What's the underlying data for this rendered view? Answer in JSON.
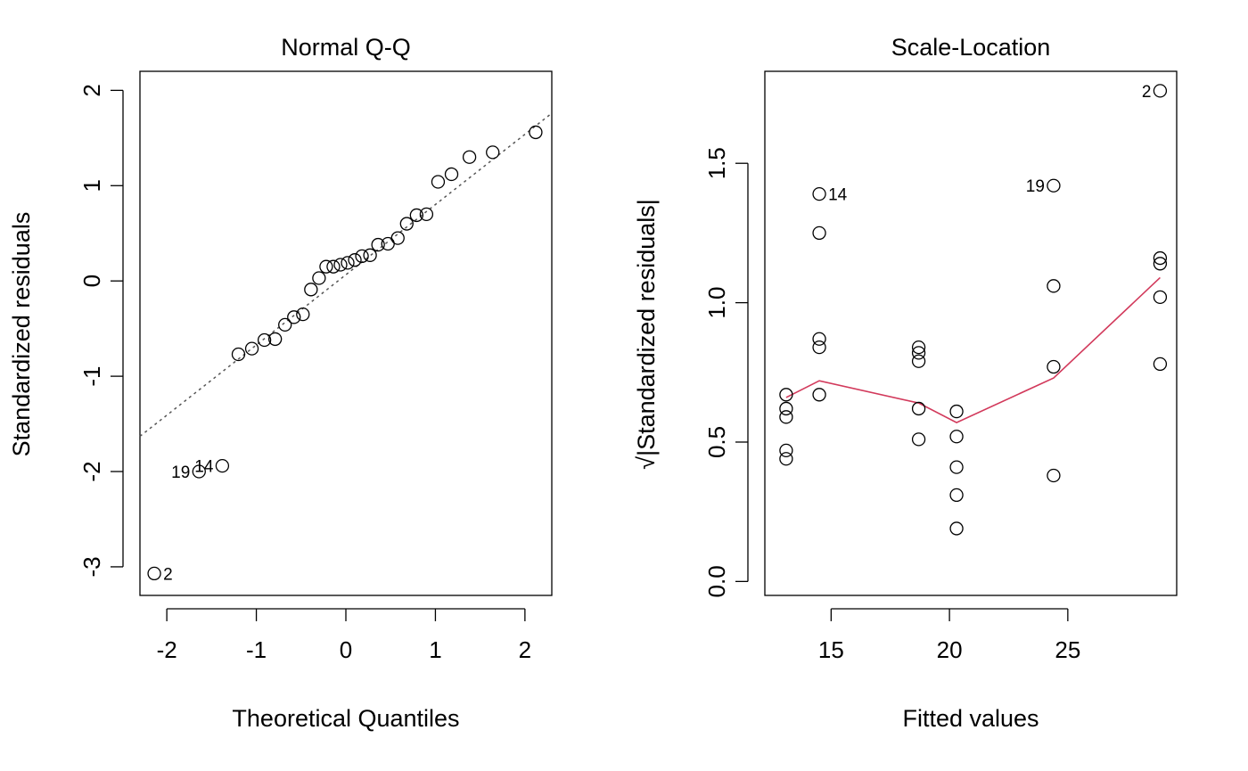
{
  "figure": {
    "chart_data": [
      {
        "type": "scatter",
        "title": "Normal Q-Q",
        "xlabel": "Theoretical Quantiles",
        "ylabel": "Standardized residuals",
        "xlim": [
          -2.3,
          2.3
        ],
        "ylim": [
          -3.3,
          2.2
        ],
        "xticks": [
          "-2",
          "-1",
          "0",
          "1",
          "2"
        ],
        "xtick_values": [
          -2,
          -1,
          0,
          1,
          2
        ],
        "yticks": [
          "-3",
          "-2",
          "-1",
          "0",
          "1",
          "2"
        ],
        "ytick_values": [
          -3,
          -2,
          -1,
          0,
          1,
          2
        ],
        "reference_line": {
          "style": "dotted",
          "color": "#555555",
          "x": [
            -2.3,
            2.3
          ],
          "y": [
            -1.63,
            1.76
          ]
        },
        "x": [
          -2.14,
          -1.64,
          -1.38,
          -1.2,
          -1.05,
          -0.91,
          -0.79,
          -0.68,
          -0.58,
          -0.48,
          -0.39,
          -0.3,
          -0.22,
          -0.14,
          -0.06,
          0.02,
          0.1,
          0.18,
          0.27,
          0.36,
          0.47,
          0.58,
          0.68,
          0.79,
          0.9,
          1.03,
          1.18,
          1.38,
          1.64,
          2.12
        ],
        "y": [
          -3.07,
          -2.0,
          -1.94,
          -0.77,
          -0.71,
          -0.62,
          -0.61,
          -0.46,
          -0.38,
          -0.35,
          -0.09,
          0.03,
          0.15,
          0.15,
          0.17,
          0.19,
          0.22,
          0.26,
          0.27,
          0.38,
          0.39,
          0.45,
          0.6,
          0.69,
          0.7,
          1.04,
          1.12,
          1.3,
          1.35,
          1.56
        ],
        "point_labels": [
          {
            "text": "2",
            "x": -2.14,
            "y": -3.07,
            "side": "right"
          },
          {
            "text": "19",
            "x": -1.64,
            "y": -2.0,
            "side": "left"
          },
          {
            "text": "14",
            "x": -1.38,
            "y": -1.94,
            "side": "left"
          }
        ]
      },
      {
        "type": "scatter",
        "title": "Scale-Location",
        "xlabel": "Fitted values",
        "ylabel": "√|Standardized residuals|",
        "xlim": [
          12.2,
          29.6
        ],
        "ylim": [
          -0.05,
          1.83
        ],
        "xticks": [
          "15",
          "20",
          "25"
        ],
        "xtick_values": [
          15,
          20,
          25
        ],
        "yticks": [
          "0.0",
          "0.5",
          "1.0",
          "1.5"
        ],
        "ytick_values": [
          0.0,
          0.5,
          1.0,
          1.5
        ],
        "smoother": {
          "color": "#D2395B",
          "x": [
            13.1,
            14.5,
            18.7,
            20.3,
            24.4,
            28.9
          ],
          "y": [
            0.66,
            0.72,
            0.64,
            0.57,
            0.73,
            1.09
          ]
        },
        "x": [
          13.1,
          13.1,
          13.1,
          13.1,
          13.1,
          14.5,
          14.5,
          14.5,
          14.5,
          14.5,
          18.7,
          18.7,
          18.7,
          18.7,
          18.7,
          20.3,
          20.3,
          20.3,
          20.3,
          20.3,
          24.4,
          24.4,
          24.4,
          24.4,
          28.9,
          28.9,
          28.9,
          28.9,
          28.9
        ],
        "y": [
          0.67,
          0.62,
          0.59,
          0.47,
          0.44,
          1.39,
          1.25,
          0.87,
          0.84,
          0.67,
          0.84,
          0.82,
          0.79,
          0.62,
          0.51,
          0.61,
          0.52,
          0.41,
          0.31,
          0.19,
          1.42,
          1.06,
          0.77,
          0.38,
          1.76,
          1.16,
          1.14,
          1.02,
          0.78
        ],
        "point_labels": [
          {
            "text": "14",
            "x": 14.5,
            "y": 1.39,
            "side": "right"
          },
          {
            "text": "19",
            "x": 24.4,
            "y": 1.42,
            "side": "left"
          },
          {
            "text": "2",
            "x": 28.9,
            "y": 1.76,
            "side": "left"
          }
        ]
      }
    ]
  }
}
